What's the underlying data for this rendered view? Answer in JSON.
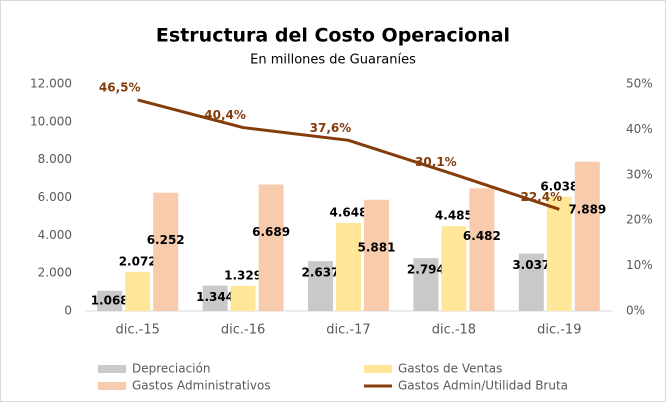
{
  "chart_data": {
    "type": "bar",
    "title": "Estructura del Costo Operacional",
    "subtitle": "En millones de Guaraníes",
    "categories": [
      "dic.-15",
      "dic.-16",
      "dic.-17",
      "dic.-18",
      "dic.-19"
    ],
    "series": [
      {
        "name": "Depreciación",
        "color": "#c9c9c9",
        "type": "bar",
        "values": [
          1068,
          1344,
          2637,
          2794,
          3037
        ],
        "value_labels": [
          "1.068",
          "1.344",
          "2.637",
          "2.794",
          "3.037"
        ]
      },
      {
        "name": "Gastos de Ventas",
        "color": "#ffe699",
        "type": "bar",
        "values": [
          2072,
          1329,
          4648,
          4485,
          6038
        ],
        "value_labels": [
          "2.072",
          "1.329",
          "4.648",
          "4.485",
          "6.038"
        ]
      },
      {
        "name": "Gastos Administrativos",
        "color": "#f8cbad",
        "type": "bar",
        "values": [
          6252,
          6689,
          5881,
          6482,
          7889
        ],
        "value_labels": [
          "6.252",
          "6.689",
          "5.881",
          "6.482",
          "7.889"
        ]
      },
      {
        "name": "Gastos Admin/Utilidad Bruta",
        "color": "#843c0c",
        "type": "line",
        "axis": "y2",
        "values": [
          46.5,
          40.4,
          37.6,
          30.1,
          22.4
        ],
        "value_labels": [
          "46,5%",
          "40,4%",
          "37,6%",
          "30,1%",
          "22,4%"
        ]
      }
    ],
    "ylim": [
      0,
      12000
    ],
    "yticks": [
      0,
      {
        "value": 2000,
        "label": "2.000"
      },
      {
        "value": 4000,
        "label": "4.000"
      },
      {
        "value": 6000,
        "label": "6.000"
      },
      {
        "value": 8000,
        "label": "8.000"
      },
      {
        "value": 10000,
        "label": "10.000"
      },
      {
        "value": 12000,
        "label": "12.000"
      }
    ],
    "y2lim": [
      0,
      50
    ],
    "y2ticks": [
      {
        "value": 0,
        "label": "0%"
      },
      {
        "value": 10,
        "label": "10%"
      },
      {
        "value": 20,
        "label": "20%"
      },
      {
        "value": 30,
        "label": "30%"
      },
      {
        "value": 40,
        "label": "40%"
      },
      {
        "value": 50,
        "label": "50%"
      }
    ],
    "legend": "bottom"
  }
}
